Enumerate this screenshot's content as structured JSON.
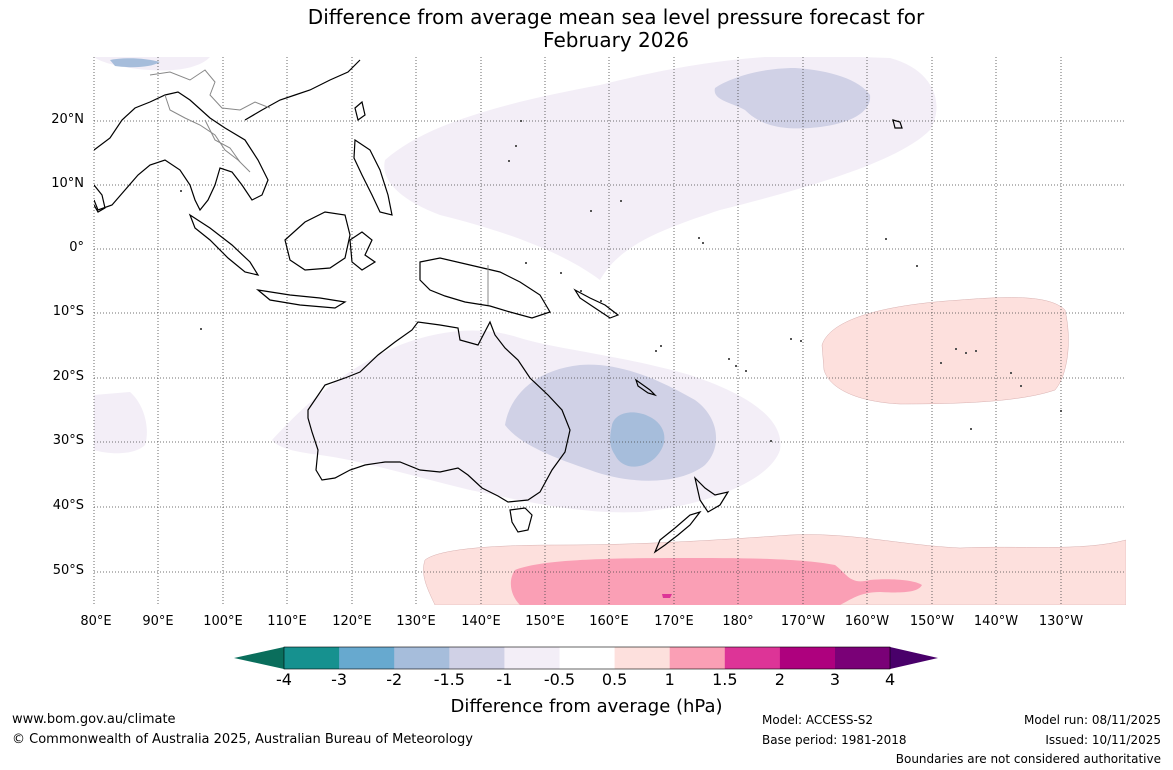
{
  "title_line1": "Difference from average mean sea level pressure forecast for",
  "title_line2": "February 2026",
  "lat_labels": [
    "20°N",
    "10°N",
    "0°",
    "10°S",
    "20°S",
    "30°S",
    "40°S",
    "50°S"
  ],
  "lon_labels": [
    "80°E",
    "90°E",
    "100°E",
    "110°E",
    "120°E",
    "130°E",
    "140°E",
    "150°E",
    "160°E",
    "170°E",
    "180°",
    "170°W",
    "160°W",
    "150°W",
    "140°W",
    "130°W"
  ],
  "colorbar": {
    "ticks": [
      "-4",
      "-3",
      "-2",
      "-1.5",
      "-1",
      "-0.5",
      "0.5",
      "1",
      "1.5",
      "2",
      "3",
      "4"
    ],
    "colors": [
      "#16918f",
      "#67a9cf",
      "#a6bddb",
      "#d0d1e6",
      "#f3eef7",
      "#ffffff",
      "#fde0dd",
      "#fa9fb5",
      "#dd3497",
      "#ae017e",
      "#7a0177"
    ],
    "under_color": "#0a6e5c",
    "over_color": "#49006a",
    "label": "Difference from average (hPa)"
  },
  "footer": {
    "website": "www.bom.gov.au/climate",
    "copyright": "© Commonwealth of Australia 2025, Australian Bureau of Meteorology",
    "model": "Model: ACCESS-S2",
    "base_period": "Base period: 1981-2018",
    "model_run": "Model run: 08/11/2025",
    "issued": "Issued: 10/11/2025",
    "disclaimer": "Boundaries are not considered authoritative"
  }
}
